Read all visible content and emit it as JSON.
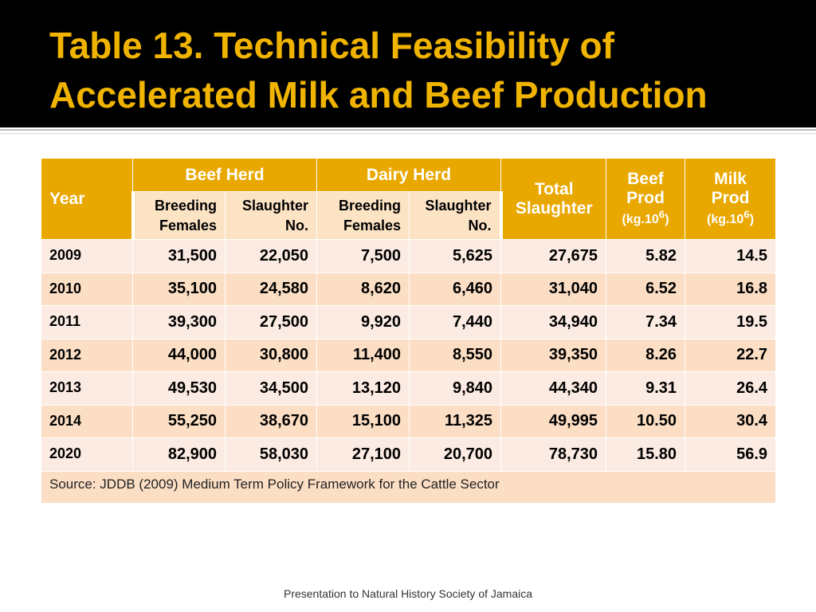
{
  "title_line1": "Table 13.  Technical Feasibility of",
  "title_line2": "Accelerated Milk and Beef Production",
  "table": {
    "headers": {
      "year": "Year",
      "beef_herd": "Beef Herd",
      "dairy_herd": "Dairy Herd",
      "total_slaughter_1": "Total",
      "total_slaughter_2": "Slaughter",
      "beef_prod_1": "Beef",
      "beef_prod_2": "Prod",
      "beef_prod_unit": "(kg.10",
      "beef_prod_exp": "6",
      "beef_prod_close": ")",
      "milk_prod_1": "Milk",
      "milk_prod_2": "Prod",
      "milk_prod_unit": "(kg.10",
      "milk_prod_exp": "6",
      "milk_prod_close": ")",
      "breeding_1": "Breeding",
      "breeding_2": "Females",
      "slaughter_1": "Slaughter",
      "slaughter_2": "No."
    },
    "rows": [
      [
        "2009",
        "31,500",
        "22,050",
        "7,500",
        "5,625",
        "27,675",
        "5.82",
        "14.5"
      ],
      [
        "2010",
        "35,100",
        "24,580",
        "8,620",
        "6,460",
        "31,040",
        "6.52",
        "16.8"
      ],
      [
        "2011",
        "39,300",
        "27,500",
        "9,920",
        "7,440",
        "34,940",
        "7.34",
        "19.5"
      ],
      [
        "2012",
        "44,000",
        "30,800",
        "11,400",
        "8,550",
        "39,350",
        "8.26",
        "22.7"
      ],
      [
        "2013",
        "49,530",
        "34,500",
        "13,120",
        "9,840",
        "44,340",
        "9.31",
        "26.4"
      ],
      [
        "2014",
        "55,250",
        "38,670",
        "15,100",
        "11,325",
        "49,995",
        "10.50",
        "30.4"
      ],
      [
        "2020",
        "82,900",
        "58,030",
        "27,100",
        "20,700",
        "78,730",
        "15.80",
        "56.9"
      ]
    ],
    "source": "Source:  JDDB (2009)  Medium Term Policy Framework for the Cattle Sector"
  },
  "footer": "Presentation to Natural History Society of Jamaica",
  "colors": {
    "title": "#f0b400",
    "header_fill": "#e9a800",
    "subheader_fill": "#fce3c4",
    "row_odd": "#fbebe2",
    "row_even": "#fbdec4"
  }
}
